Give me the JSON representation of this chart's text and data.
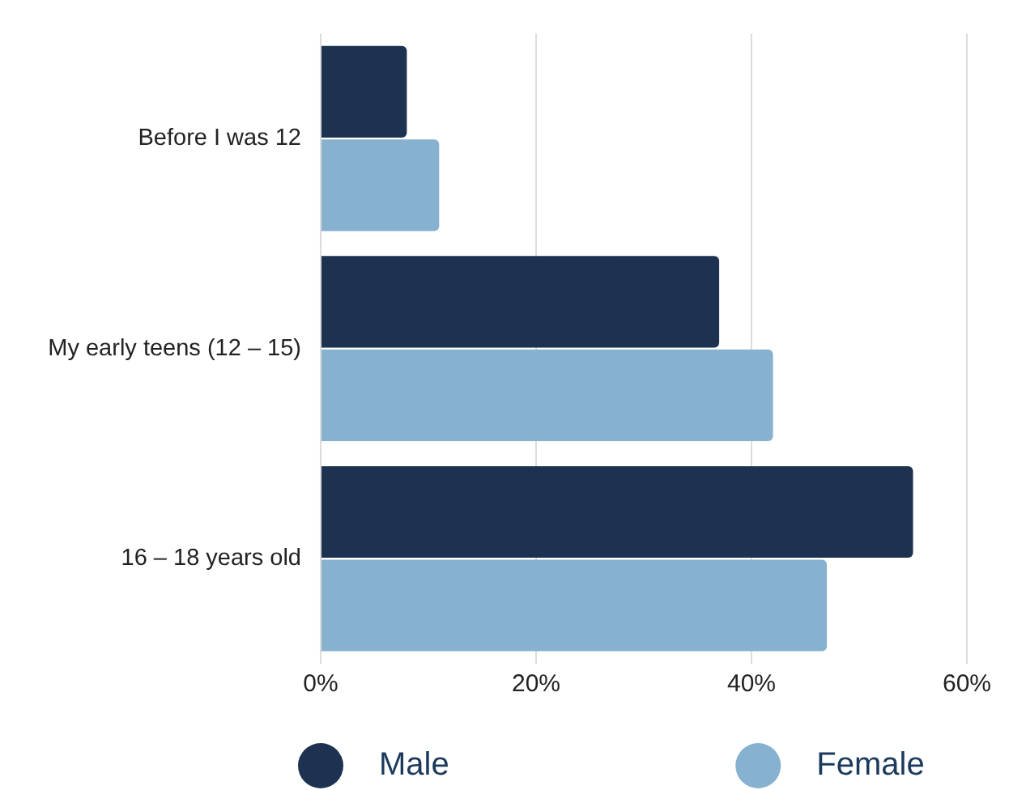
{
  "chart_data": {
    "type": "bar",
    "orientation": "horizontal",
    "categories": [
      "Before I was 12",
      "My early teens (12 – 15)",
      "16 – 18 years old"
    ],
    "series": [
      {
        "name": "Male",
        "color": "#1d3150",
        "values": [
          8,
          37,
          55
        ]
      },
      {
        "name": "Female",
        "color": "#86b2d0",
        "values": [
          11,
          42,
          47
        ]
      }
    ],
    "xlim": [
      0,
      60
    ],
    "xticks": [
      {
        "value": 0,
        "label": "0%"
      },
      {
        "value": 20,
        "label": "20%"
      },
      {
        "value": 40,
        "label": "40%"
      },
      {
        "value": 60,
        "label": "60%"
      }
    ],
    "grid": "x",
    "legend": "bottom"
  }
}
